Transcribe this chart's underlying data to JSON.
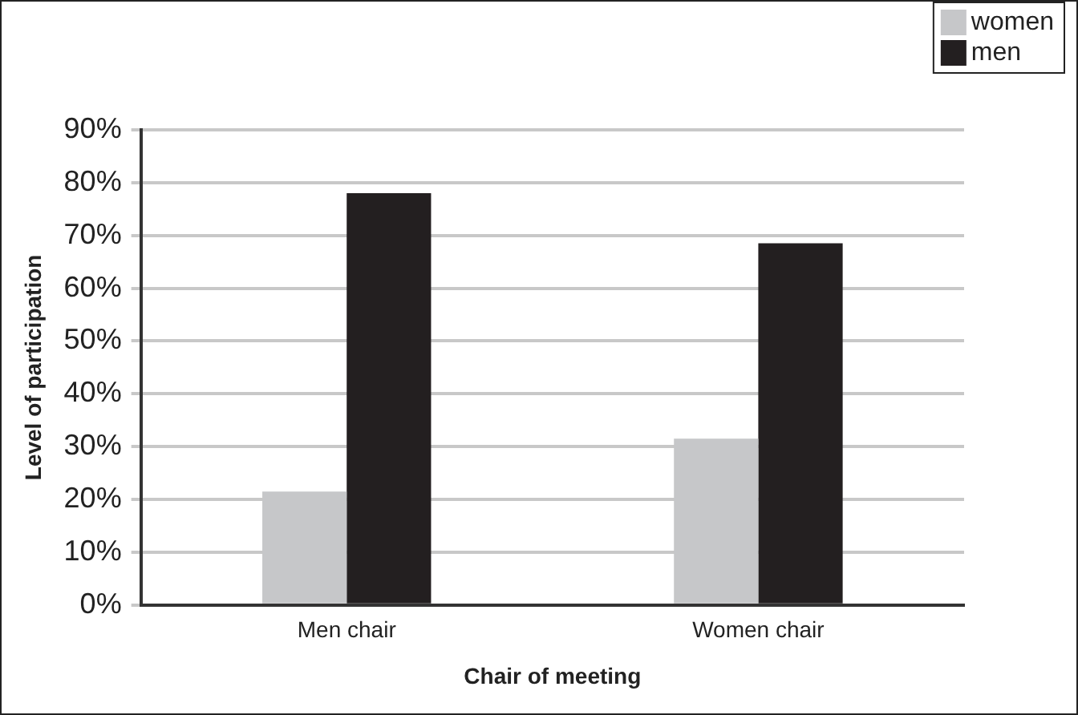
{
  "chart_data": {
    "type": "bar",
    "categories": [
      "Men chair",
      "Women chair"
    ],
    "xlabel": "Chair of meeting",
    "ylabel": "Level of participation",
    "series": [
      {
        "name": "women",
        "color": "#c6c7c9",
        "values": [
          21.5,
          31.5
        ]
      },
      {
        "name": "men",
        "color": "#231f20",
        "values": [
          78,
          68.5
        ]
      }
    ],
    "ylim": [
      0,
      90
    ],
    "yticks": [
      {
        "value": 0,
        "label": "0%"
      },
      {
        "value": 10,
        "label": "10%"
      },
      {
        "value": 20,
        "label": "20%"
      },
      {
        "value": 30,
        "label": "30%"
      },
      {
        "value": 40,
        "label": "40%"
      },
      {
        "value": 50,
        "label": "50%"
      },
      {
        "value": 60,
        "label": "60%"
      },
      {
        "value": 70,
        "label": "70%"
      },
      {
        "value": 80,
        "label": "80%"
      },
      {
        "value": 90,
        "label": "90%"
      }
    ],
    "grid": "y",
    "legend": "top right"
  }
}
